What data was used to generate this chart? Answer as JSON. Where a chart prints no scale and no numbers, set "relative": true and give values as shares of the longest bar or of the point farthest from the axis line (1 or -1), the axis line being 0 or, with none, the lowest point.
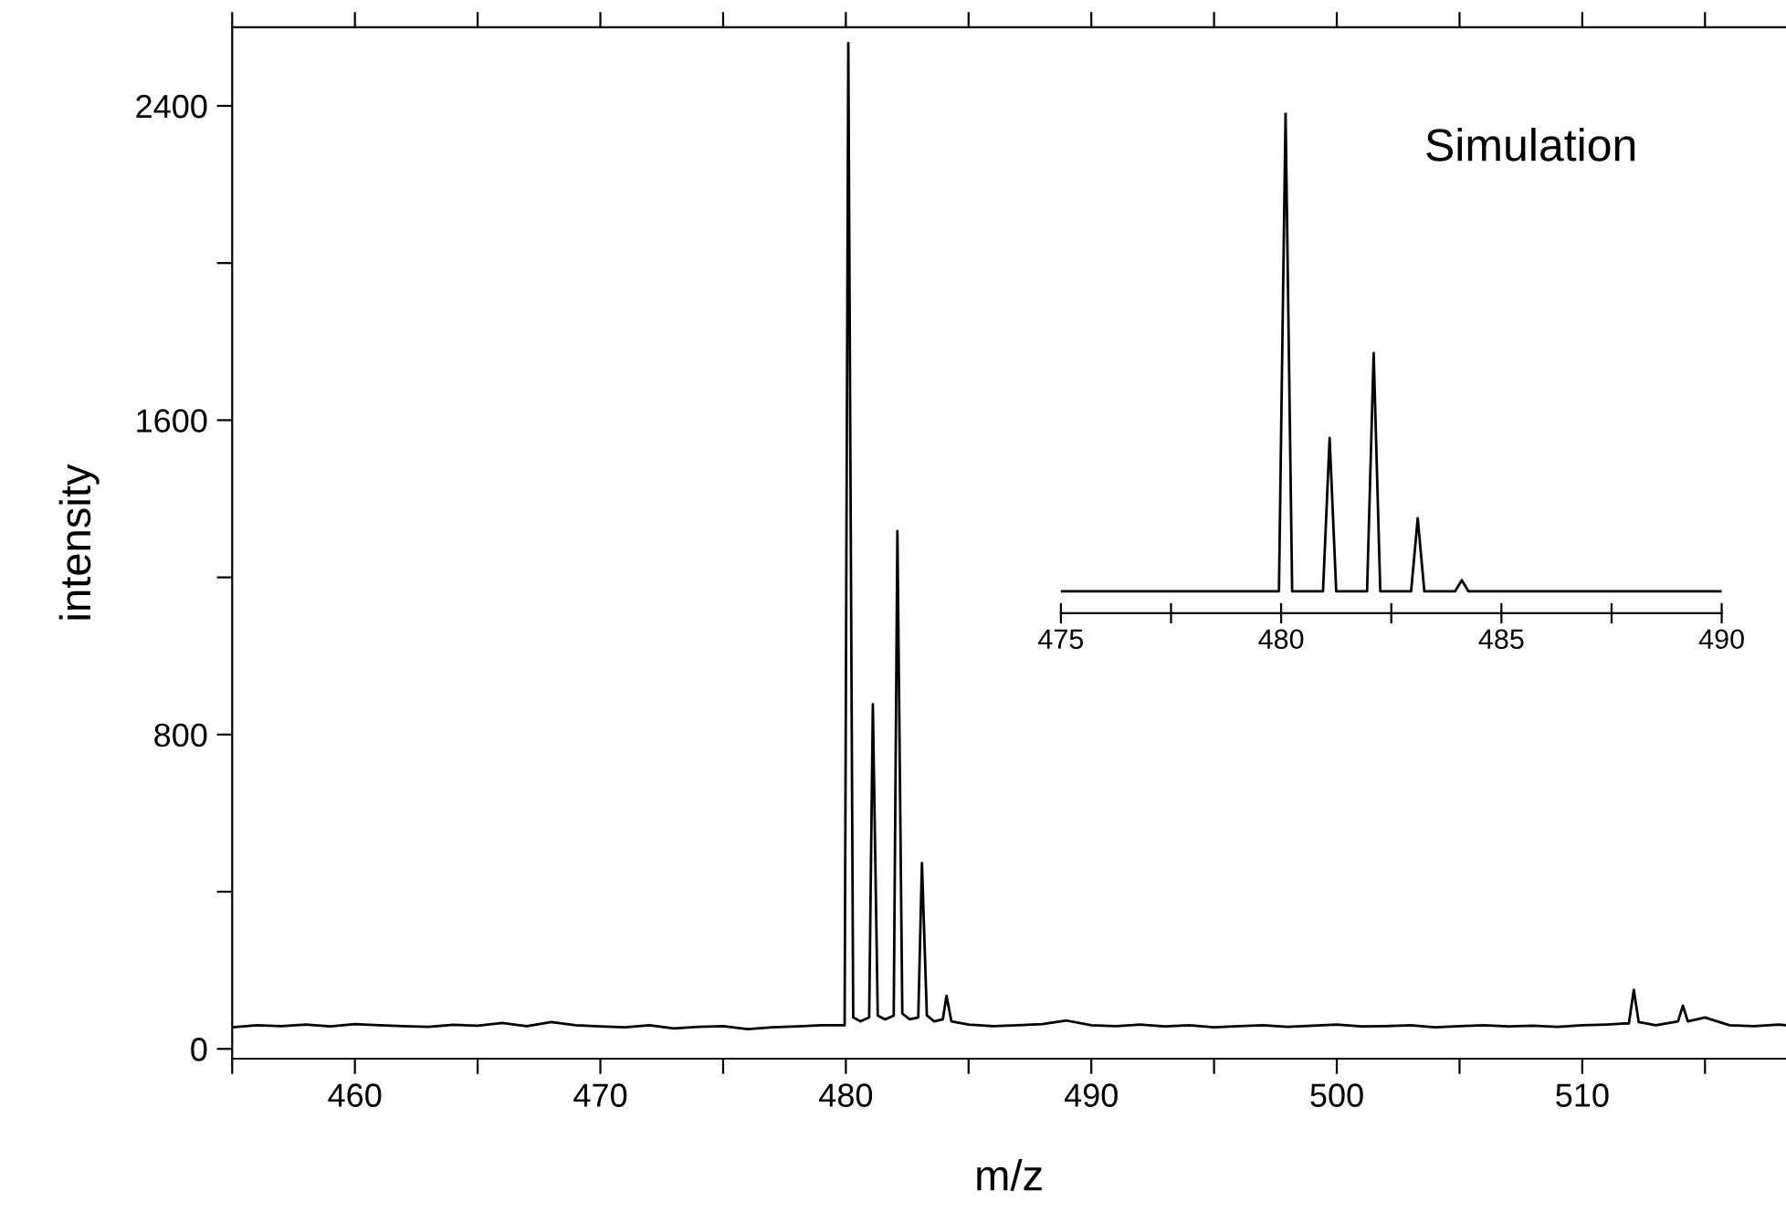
{
  "chart_data": [
    {
      "type": "line",
      "xlabel": "m/z",
      "ylabel": "intensity",
      "xlim": [
        455,
        518.3
      ],
      "ylim": [
        -25,
        2600
      ],
      "xticks": [
        {
          "value": 455,
          "label": null
        },
        460,
        {
          "value": 465,
          "label": null
        },
        470,
        {
          "value": 475,
          "label": null
        },
        480,
        {
          "value": 485,
          "label": null
        },
        490,
        {
          "value": 495,
          "label": null
        },
        500,
        {
          "value": 505,
          "label": null
        },
        510,
        {
          "value": 515,
          "label": null
        }
      ],
      "yticks": [
        0,
        {
          "value": 400,
          "label": null
        },
        800,
        {
          "value": 1200,
          "label": null
        },
        1600,
        {
          "value": 2000,
          "label": null
        },
        2400
      ],
      "grid": false,
      "marker": "none",
      "line_style": "solid",
      "series": [
        {
          "color": "#000000",
          "x": [
            455,
            456,
            457,
            458,
            459,
            460,
            461,
            462,
            463,
            464,
            465,
            466,
            467,
            468,
            469,
            470,
            471,
            472,
            473,
            474,
            475,
            476,
            477,
            478,
            479,
            479.95,
            480.1,
            480.3,
            480.6,
            480.95,
            481.1,
            481.3,
            481.6,
            481.95,
            482.1,
            482.3,
            482.6,
            482.95,
            483.1,
            483.3,
            483.6,
            483.95,
            484.1,
            484.3,
            485,
            486,
            487,
            488,
            489,
            490,
            491,
            492,
            493,
            494,
            495,
            496,
            497,
            498,
            499,
            500,
            501,
            502,
            503,
            504,
            505,
            506,
            507,
            508,
            509,
            510,
            511,
            511.9,
            512.1,
            512.3,
            513,
            513.9,
            514.1,
            514.3,
            515,
            516,
            517,
            518,
            518.3
          ],
          "values": [
            55,
            60,
            58,
            62,
            57,
            63,
            60,
            58,
            56,
            61,
            59,
            66,
            58,
            68,
            60,
            57,
            55,
            60,
            52,
            56,
            58,
            50,
            55,
            57,
            60,
            60,
            2560,
            80,
            70,
            80,
            877,
            85,
            75,
            85,
            1318,
            90,
            75,
            80,
            473,
            85,
            70,
            75,
            135,
            70,
            62,
            58,
            60,
            63,
            72,
            60,
            58,
            62,
            57,
            60,
            55,
            58,
            60,
            56,
            59,
            62,
            57,
            58,
            60,
            55,
            58,
            60,
            57,
            59,
            56,
            60,
            62,
            65,
            150,
            68,
            60,
            70,
            110,
            70,
            80,
            60,
            58,
            62,
            60
          ]
        }
      ]
    },
    {
      "type": "line",
      "relative": true,
      "title": "Simulation",
      "xlim": [
        475,
        490
      ],
      "xticks": [
        475,
        {
          "value": 477.5,
          "label": null
        },
        480,
        {
          "value": 482.5,
          "label": null
        },
        485,
        {
          "value": 487.5,
          "label": null
        },
        490
      ],
      "tick_labels": "x",
      "grid": false,
      "marker": "none",
      "line_style": "solid",
      "series": [
        {
          "color": "#000000",
          "x": [
            475,
            479.95,
            480.1,
            480.25,
            480.95,
            481.1,
            481.25,
            481.95,
            482.1,
            482.25,
            482.95,
            483.1,
            483.25,
            483.95,
            484.1,
            484.25,
            490
          ],
          "values": [
            0.044,
            0.044,
            1,
            0.044,
            0.044,
            0.35,
            0.044,
            0.044,
            0.52,
            0.044,
            0.044,
            0.19,
            0.044,
            0.044,
            0.066,
            0.044,
            0.044
          ]
        }
      ]
    }
  ]
}
